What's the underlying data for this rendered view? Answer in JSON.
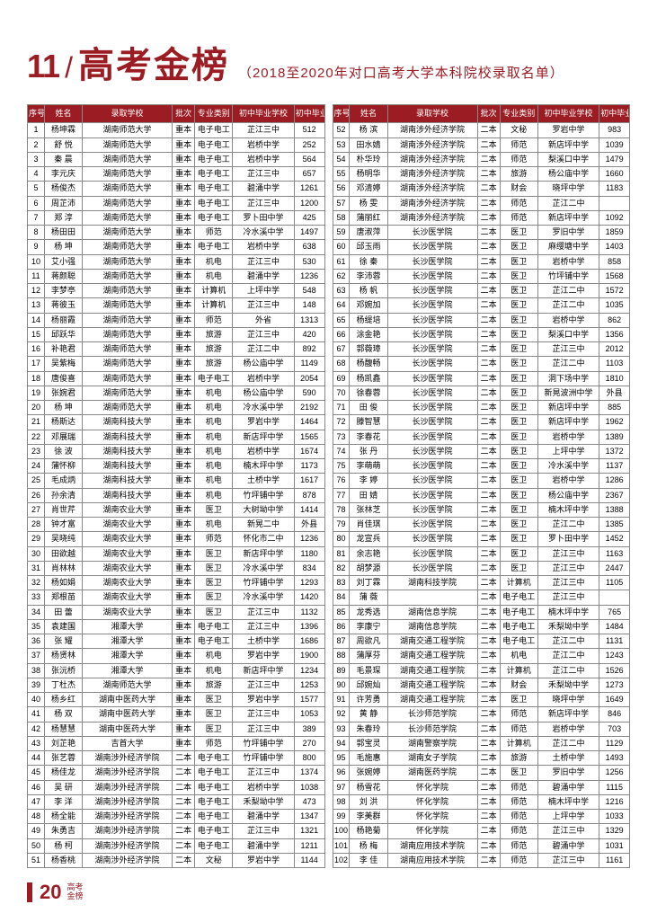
{
  "header": {
    "section_num": "11",
    "slash": "/",
    "title": "高考金榜",
    "subtitle": "（2018至2020年对口高考大学本科院校录取名单）"
  },
  "columns": [
    "序号",
    "姓名",
    "录取学校",
    "批次",
    "专业类别",
    "初中毕业学校",
    "初中毕业会考全县排名"
  ],
  "left": [
    [
      "1",
      "杨坤霖",
      "湖南师范大学",
      "重本",
      "电子电工",
      "芷江三中",
      "512"
    ],
    [
      "2",
      "舒 悦",
      "湖南师范大学",
      "重本",
      "电子电工",
      "岩桥中学",
      "252"
    ],
    [
      "3",
      "秦 晨",
      "湖南师范大学",
      "重本",
      "电子电工",
      "岩桥中学",
      "564"
    ],
    [
      "4",
      "李元庆",
      "湖南师范大学",
      "重本",
      "电子电工",
      "芷江三中",
      "657"
    ],
    [
      "5",
      "杨俊杰",
      "湖南师范大学",
      "重本",
      "电子电工",
      "碧涌中学",
      "1261"
    ],
    [
      "6",
      "周芷沛",
      "湖南师范大学",
      "重本",
      "电子电工",
      "芷江三中",
      "1200"
    ],
    [
      "7",
      "郑 淳",
      "湖南师范大学",
      "重本",
      "电子电工",
      "罗卜田中学",
      "425"
    ],
    [
      "8",
      "杨田田",
      "湖南师范大学",
      "重本",
      "师范",
      "冷水溪中学",
      "1497"
    ],
    [
      "9",
      "杨 坤",
      "湖南师范大学",
      "重本",
      "电子电工",
      "岩桥中学",
      "638"
    ],
    [
      "10",
      "艾小强",
      "湖南师范大学",
      "重本",
      "机电",
      "芷江三中",
      "530"
    ],
    [
      "11",
      "蒋颜聪",
      "湖南师范大学",
      "重本",
      "机电",
      "碧涌中学",
      "1236"
    ],
    [
      "12",
      "李梦亭",
      "湖南师范大学",
      "重本",
      "计算机",
      "上坪中学",
      "548"
    ],
    [
      "13",
      "蒋彼玉",
      "湖南师范大学",
      "重本",
      "计算机",
      "芷江三中",
      "148"
    ],
    [
      "14",
      "杨丽霞",
      "湖南师范大学",
      "重本",
      "师范",
      "外省",
      "1313"
    ],
    [
      "15",
      "邱跃华",
      "湖南师范大学",
      "重本",
      "旅游",
      "芷江三中",
      "420"
    ],
    [
      "16",
      "补艳君",
      "湖南师范大学",
      "重本",
      "旅游",
      "芷江二中",
      "892"
    ],
    [
      "17",
      "吴紫梅",
      "湖南师范大学",
      "重本",
      "旅游",
      "杨公庙中学",
      "1149"
    ],
    [
      "18",
      "唐俊喜",
      "湖南师范大学",
      "重本",
      "电子电工",
      "岩桥中学",
      "2054"
    ],
    [
      "19",
      "张婉君",
      "湖南师范大学",
      "重本",
      "机电",
      "杨公庙中学",
      "590"
    ],
    [
      "20",
      "杨 坤",
      "湖南师范大学",
      "重本",
      "机电",
      "冷水溪中学",
      "2192"
    ],
    [
      "21",
      "杨斯达",
      "湖南科技大学",
      "重本",
      "机电",
      "罗岩中学",
      "1464"
    ],
    [
      "22",
      "邓展瑞",
      "湖南科技大学",
      "重本",
      "机电",
      "新店坪中学",
      "1565"
    ],
    [
      "23",
      "徐 波",
      "湖南科技大学",
      "重本",
      "机电",
      "岩桥中学",
      "1674"
    ],
    [
      "24",
      "蒲怀柳",
      "湖南科技大学",
      "重本",
      "机电",
      "楠木坪中学",
      "1173"
    ],
    [
      "25",
      "毛成炳",
      "湖南科技大学",
      "重本",
      "机电",
      "土桥中学",
      "1617"
    ],
    [
      "26",
      "孙余清",
      "湖南科技大学",
      "重本",
      "机电",
      "竹坪铺中学",
      "878"
    ],
    [
      "27",
      "肖世芹",
      "湖南农业大学",
      "重本",
      "医卫",
      "大树坳中学",
      "1414"
    ],
    [
      "28",
      "钟才富",
      "湖南农业大学",
      "重本",
      "机电",
      "新晃二中",
      "外县"
    ],
    [
      "29",
      "吴晓纯",
      "湖南农业大学",
      "重本",
      "师范",
      "怀化市二中",
      "1236"
    ],
    [
      "30",
      "田欲越",
      "湖南农业大学",
      "重本",
      "医卫",
      "新店坪中学",
      "1180"
    ],
    [
      "31",
      "肖林林",
      "湖南农业大学",
      "重本",
      "医卫",
      "冷水溪中学",
      "834"
    ],
    [
      "32",
      "杨如娟",
      "湖南农业大学",
      "重本",
      "医卫",
      "竹坪铺中学",
      "1293"
    ],
    [
      "33",
      "郑根苗",
      "湖南农业大学",
      "重本",
      "医卫",
      "冷水溪中学",
      "1420"
    ],
    [
      "34",
      "田 蕾",
      "湖南农业大学",
      "重本",
      "医卫",
      "芷江三中",
      "1132"
    ],
    [
      "35",
      "袁建国",
      "湘潭大学",
      "重本",
      "电子电工",
      "芷江三中",
      "1396"
    ],
    [
      "36",
      "张 耀",
      "湘潭大学",
      "重本",
      "电子电工",
      "土桥中学",
      "1686"
    ],
    [
      "37",
      "杨贤林",
      "湘潭大学",
      "重本",
      "机电",
      "罗岩中学",
      "1900"
    ],
    [
      "38",
      "张沅桥",
      "湘潭大学",
      "重本",
      "机电",
      "新店坪中学",
      "1234"
    ],
    [
      "39",
      "丁杜杰",
      "湖南师范大学",
      "重本",
      "旅游",
      "芷江三中",
      "1253"
    ],
    [
      "40",
      "杨乡红",
      "湖南中医药大学",
      "重本",
      "医卫",
      "罗岩中学",
      "1577"
    ],
    [
      "41",
      "杨 双",
      "湖南中医药大学",
      "重本",
      "医卫",
      "芷江三中",
      "1053"
    ],
    [
      "42",
      "杨慧慧",
      "湖南中医药大学",
      "重本",
      "医卫",
      "芷江三中",
      "389"
    ],
    [
      "43",
      "刘芷艳",
      "吉首大学",
      "重本",
      "师范",
      "竹坪铺中学",
      "270"
    ],
    [
      "44",
      "张艺蓉",
      "湖南涉外经济学院",
      "二本",
      "电子电工",
      "竹坪铺中学",
      "800"
    ],
    [
      "45",
      "杨佳龙",
      "湖南涉外经济学院",
      "二本",
      "电子电工",
      "芷江三中",
      "1374"
    ],
    [
      "46",
      "吴 研",
      "湖南涉外经济学院",
      "二本",
      "电子电工",
      "岩桥中学",
      "1038"
    ],
    [
      "47",
      "李 洋",
      "湖南涉外经济学院",
      "二本",
      "电子电工",
      "禾梨坳中学",
      "473"
    ],
    [
      "48",
      "杨全能",
      "湖南涉外经济学院",
      "二本",
      "电子电工",
      "碧涌中学",
      "1347"
    ],
    [
      "49",
      "朱勇吉",
      "湖南涉外经济学院",
      "二本",
      "电子电工",
      "芷江三中",
      "1321"
    ],
    [
      "50",
      "杨 柯",
      "湖南涉外经济学院",
      "二本",
      "电子电工",
      "碧涌中学",
      "1211"
    ],
    [
      "51",
      "杨香桃",
      "湖南涉外经济学院",
      "二本",
      "文秘",
      "罗岩中学",
      "1144"
    ]
  ],
  "right": [
    [
      "52",
      "杨 滨",
      "湖南涉外经济学院",
      "二本",
      "文秘",
      "罗岩中学",
      "983"
    ],
    [
      "53",
      "田水婧",
      "湖南涉外经济学院",
      "二本",
      "师范",
      "新店坪中学",
      "1039"
    ],
    [
      "54",
      "朴华玲",
      "湖南涉外经济学院",
      "二本",
      "师范",
      "梨溪口中学",
      "1479"
    ],
    [
      "55",
      "杨明华",
      "湖南涉外经济学院",
      "二本",
      "旅游",
      "杨公庙中学",
      "1660"
    ],
    [
      "56",
      "邓清婷",
      "湖南涉外经济学院",
      "二本",
      "财会",
      "晓坪中学",
      "1183"
    ],
    [
      "57",
      "杨 雯",
      "湖南涉外经济学院",
      "二本",
      "师范",
      "芷江二中",
      ""
    ],
    [
      "58",
      "蒲丽红",
      "湖南涉外经济学院",
      "二本",
      "师范",
      "新店坪中学",
      "1092"
    ],
    [
      "59",
      "唐淑萍",
      "长沙医学院",
      "二本",
      "医卫",
      "罗旧中学",
      "1859"
    ],
    [
      "60",
      "邱玉雨",
      "长沙医学院",
      "二本",
      "医卫",
      "麻缨塘中学",
      "1403"
    ],
    [
      "61",
      "徐 秦",
      "长沙医学院",
      "二本",
      "医卫",
      "岩桥中学",
      "858"
    ],
    [
      "62",
      "李沛蓉",
      "长沙医学院",
      "二本",
      "医卫",
      "竹坪铺中学",
      "1568"
    ],
    [
      "63",
      "杨 帆",
      "长沙医学院",
      "二本",
      "医卫",
      "芷江二中",
      "1572"
    ],
    [
      "64",
      "邓婉加",
      "长沙医学院",
      "二本",
      "医卫",
      "芷江二中",
      "1035"
    ],
    [
      "65",
      "杨缇培",
      "长沙医学院",
      "二本",
      "医卫",
      "岩桥中学",
      "862"
    ],
    [
      "66",
      "涂金艳",
      "长沙医学院",
      "二本",
      "医卫",
      "梨溪口中学",
      "1356"
    ],
    [
      "67",
      "郭薇璋",
      "长沙医学院",
      "二本",
      "医卫",
      "芷江三中",
      "2012"
    ],
    [
      "68",
      "杨馥畅",
      "长沙医学院",
      "二本",
      "医卫",
      "芷江二中",
      "1103"
    ],
    [
      "69",
      "杨凯鑫",
      "长沙医学院",
      "二本",
      "医卫",
      "洞下场中学",
      "1810"
    ],
    [
      "70",
      "徐春蓉",
      "长沙医学院",
      "二本",
      "医卫",
      "新晃波洲中学",
      "外县"
    ],
    [
      "71",
      "田 俊",
      "长沙医学院",
      "二本",
      "医卫",
      "新店坪中学",
      "885"
    ],
    [
      "72",
      "滕智慧",
      "长沙医学院",
      "二本",
      "医卫",
      "新店坪中学",
      "1962"
    ],
    [
      "73",
      "李春花",
      "长沙医学院",
      "二本",
      "医卫",
      "岩桥中学",
      "1389"
    ],
    [
      "74",
      "张 丹",
      "长沙医学院",
      "二本",
      "医卫",
      "上坪中学",
      "1372"
    ],
    [
      "75",
      "李萌萌",
      "长沙医学院",
      "二本",
      "医卫",
      "冷水溪中学",
      "1137"
    ],
    [
      "76",
      "李 婷",
      "长沙医学院",
      "二本",
      "医卫",
      "岩桥中学",
      "1286"
    ],
    [
      "77",
      "田 婧",
      "长沙医学院",
      "二本",
      "医卫",
      "杨公庙中学",
      "2367"
    ],
    [
      "78",
      "张林芝",
      "长沙医学院",
      "二本",
      "医卫",
      "楠木坪中学",
      "1388"
    ],
    [
      "79",
      "肖佳琪",
      "长沙医学院",
      "二本",
      "医卫",
      "芷江二中",
      "1385"
    ],
    [
      "80",
      "龙宣兵",
      "长沙医学院",
      "二本",
      "医卫",
      "罗卜田中学",
      "1452"
    ],
    [
      "81",
      "余志艳",
      "长沙医学院",
      "二本",
      "医卫",
      "芷江三中",
      "1163"
    ],
    [
      "82",
      "胡梦源",
      "长沙医学院",
      "二本",
      "医卫",
      "芷江三中",
      "2447"
    ],
    [
      "83",
      "刘丁霖",
      "湖南科技学院",
      "二本",
      "计算机",
      "芷江三中",
      "1105"
    ],
    [
      "84",
      "蒲 薇",
      "",
      "二本",
      "电子电工",
      "芷江三中",
      ""
    ],
    [
      "85",
      "龙秀选",
      "湖南信息学院",
      "二本",
      "电子电工",
      "楠木坪中学",
      "765"
    ],
    [
      "86",
      "李康宁",
      "湖南信息学院",
      "二本",
      "电子电工",
      "禾梨坳中学",
      "1484"
    ],
    [
      "87",
      "周欲凡",
      "湖南交通工程学院",
      "二本",
      "电子电工",
      "芷江二中",
      "1131"
    ],
    [
      "88",
      "蒲厚芬",
      "湖南交通工程学院",
      "二本",
      "机电",
      "芷江二中",
      "1243"
    ],
    [
      "89",
      "毛景琛",
      "湖南交通工程学院",
      "二本",
      "计算机",
      "芷江二中",
      "1526"
    ],
    [
      "90",
      "邱婉灿",
      "湖南交通工程学院",
      "二本",
      "财会",
      "禾梨坳中学",
      "1273"
    ],
    [
      "91",
      "许芳勇",
      "湖南交通工程学院",
      "二本",
      "医卫",
      "晓坪中学",
      "1649"
    ],
    [
      "92",
      "黄 静",
      "长沙师范学院",
      "二本",
      "师范",
      "新店坪中学",
      "846"
    ],
    [
      "93",
      "朱春玲",
      "长沙师范学院",
      "二本",
      "师范",
      "岩桥中学",
      "703"
    ],
    [
      "94",
      "郭宝灵",
      "湖南警察学院",
      "二本",
      "计算机",
      "芷江二中",
      "1129"
    ],
    [
      "95",
      "毛施惠",
      "湖南女子学院",
      "二本",
      "旅游",
      "土桥中学",
      "1493"
    ],
    [
      "96",
      "张婉婷",
      "湖南医药学院",
      "二本",
      "医卫",
      "罗旧中学",
      "1256"
    ],
    [
      "97",
      "杨雪花",
      "怀化学院",
      "二本",
      "师范",
      "碧涌中学",
      "1115"
    ],
    [
      "98",
      "刘 洪",
      "怀化学院",
      "二本",
      "师范",
      "楠木坪中学",
      "1216"
    ],
    [
      "99",
      "李美群",
      "怀化学院",
      "二本",
      "师范",
      "上坪中学",
      "1033"
    ],
    [
      "100",
      "杨艳菊",
      "怀化学院",
      "二本",
      "师范",
      "芷江三中",
      "1329"
    ],
    [
      "101",
      "杨 梅",
      "湖南应用技术学院",
      "二本",
      "师范",
      "碧涌中学",
      "1031"
    ],
    [
      "102",
      "李 佳",
      "湖南应用技术学院",
      "二本",
      "师范",
      "芷江三中",
      "1161"
    ]
  ],
  "footer": {
    "page": "20",
    "t1": "高考",
    "t2": "金榜"
  }
}
